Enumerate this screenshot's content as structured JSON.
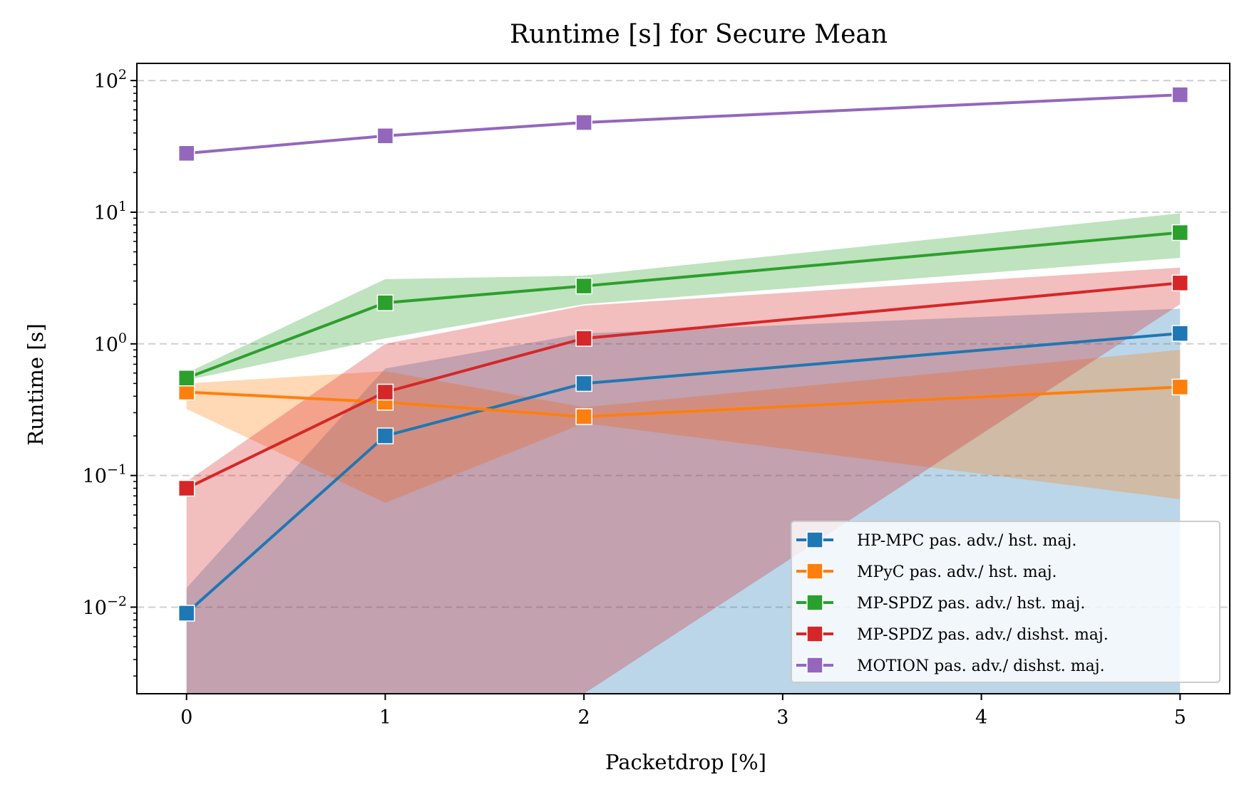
{
  "chart_data": {
    "type": "line",
    "title": "Runtime [s] for Secure Mean",
    "xlabel": "Packetdrop [%]",
    "ylabel": "Runtime [s]",
    "yscale": "log",
    "xlim": [
      -0.25,
      5.25
    ],
    "ylim": [
      0.0022,
      135
    ],
    "x_ticks": [
      0,
      1,
      2,
      3,
      4,
      5
    ],
    "x_tick_labels": [
      "0",
      "1",
      "2",
      "3",
      "4",
      "5"
    ],
    "y_major_ticks": [
      0.01,
      0.1,
      1,
      10,
      100
    ],
    "y_tick_labels": [
      {
        "base": "10",
        "exp": "−2"
      },
      {
        "base": "10",
        "exp": "−1"
      },
      {
        "base": "10",
        "exp": "0"
      },
      {
        "base": "10",
        "exp": "1"
      },
      {
        "base": "10",
        "exp": "2"
      }
    ],
    "grid": {
      "y_major": true,
      "x": false
    },
    "legend_position": "lower-right",
    "x": [
      0,
      1,
      2,
      5
    ],
    "series": [
      {
        "name": "HP-MPC pas. adv./ hst. maj.",
        "color": "#1f77b4",
        "values": [
          0.009,
          0.2,
          0.5,
          1.2
        ],
        "band_lower": [
          0.0022,
          0.0022,
          0.0022,
          0.0022
        ],
        "band_upper": [
          0.014,
          0.65,
          1.2,
          1.85
        ]
      },
      {
        "name": "MPyC pas. adv./ hst. maj.",
        "color": "#ff7f0e",
        "values": [
          0.43,
          0.36,
          0.28,
          0.47
        ],
        "band_lower": [
          0.32,
          0.062,
          0.25,
          0.066
        ],
        "band_upper": [
          0.5,
          0.62,
          0.33,
          0.9
        ]
      },
      {
        "name": "MP-SPDZ pas. adv./ hst. maj.",
        "color": "#2ca02c",
        "values": [
          0.55,
          2.05,
          2.75,
          7.0
        ],
        "band_lower": [
          0.53,
          1.1,
          2.0,
          4.5
        ],
        "band_upper": [
          0.6,
          3.1,
          3.3,
          9.8
        ]
      },
      {
        "name": "MP-SPDZ pas. adv./ dishst. maj.",
        "color": "#d62728",
        "values": [
          0.08,
          0.43,
          1.1,
          2.9
        ],
        "band_lower": [
          0.0022,
          0.0022,
          0.0022,
          2.0
        ],
        "band_upper": [
          0.09,
          1.0,
          1.95,
          3.8
        ]
      },
      {
        "name": "MOTION pas. adv./ dishst. maj.",
        "color": "#9467bd",
        "values": [
          28,
          38,
          48,
          78
        ],
        "band_lower": [
          28,
          38,
          48,
          78
        ],
        "band_upper": [
          28,
          38,
          48,
          78
        ]
      }
    ]
  }
}
